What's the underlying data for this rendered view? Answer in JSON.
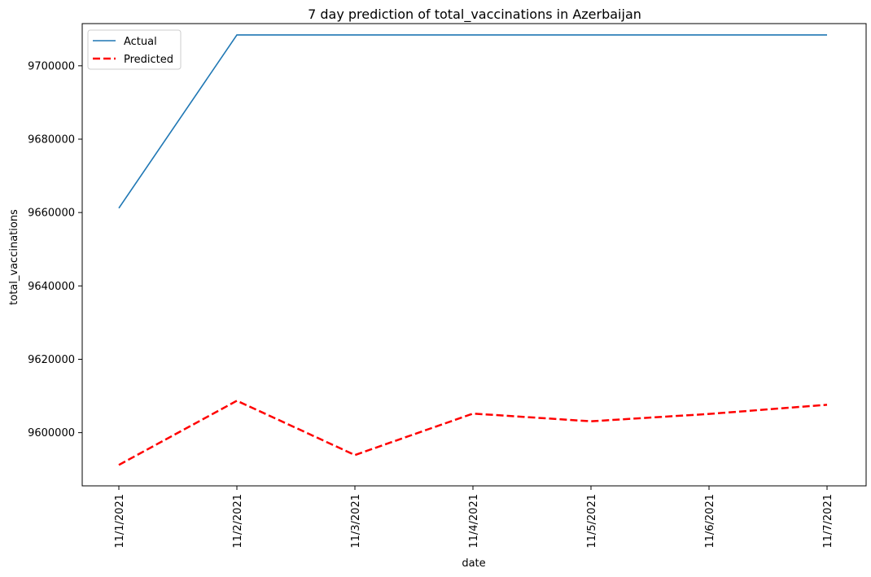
{
  "chart_data": {
    "type": "line",
    "title": "7 day prediction of total_vaccinations in Azerbaijan",
    "xlabel": "date",
    "ylabel": "total_vaccinations",
    "categories": [
      "11/1/2021",
      "11/2/2021",
      "11/3/2021",
      "11/4/2021",
      "11/5/2021",
      "11/6/2021",
      "11/7/2021"
    ],
    "yticks": [
      {
        "value": 9600000,
        "label": "9600000"
      },
      {
        "value": 9620000,
        "label": "9620000"
      },
      {
        "value": 9640000,
        "label": "9640000"
      },
      {
        "value": 9660000,
        "label": "9660000"
      },
      {
        "value": 9680000,
        "label": "9680000"
      },
      {
        "value": 9700000,
        "label": "9700000"
      }
    ],
    "ylim": [
      9585500,
      9711500
    ],
    "grid": false,
    "legend_position": "top-left",
    "series": [
      {
        "name": "Actual",
        "color": "#1f77b4",
        "dash": "solid",
        "values": [
          9661200,
          9708400,
          9708400,
          9708400,
          9708400,
          9708400,
          9708400
        ]
      },
      {
        "name": "Predicted",
        "color": "#ff0000",
        "dash": "dashed",
        "values": [
          9591200,
          9608700,
          9593900,
          9605200,
          9603100,
          9605100,
          9607600
        ]
      }
    ]
  }
}
